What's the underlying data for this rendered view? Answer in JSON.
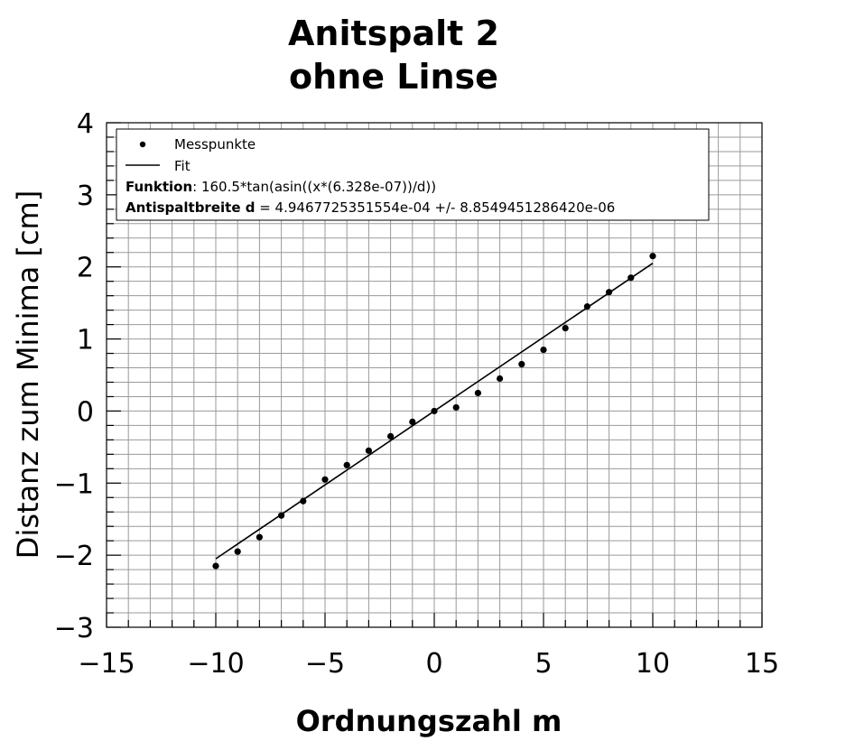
{
  "chart_data": {
    "type": "scatter",
    "title": [
      "Anitspalt 2",
      "ohne Linse"
    ],
    "xlabel": "Ordnungszahl m",
    "ylabel": "Distanz zum Minima [cm]",
    "xlim": [
      -15,
      15
    ],
    "ylim": [
      -3,
      4
    ],
    "xticks": [
      -15,
      -10,
      -5,
      0,
      5,
      10,
      15
    ],
    "yticks": [
      -3,
      -2,
      -1,
      0,
      1,
      2,
      3,
      4
    ],
    "xtick_labels": [
      "−15",
      "−10",
      "−5",
      "0",
      "5",
      "10",
      "15"
    ],
    "ytick_labels": [
      "−3",
      "−2",
      "−1",
      "0",
      "1",
      "2",
      "3",
      "4"
    ],
    "grid": true,
    "legend_position": "top-left",
    "series": [
      {
        "name": "Messpunkte",
        "kind": "points",
        "color": "#000000",
        "x": [
          -10,
          -9,
          -8,
          -7,
          -6,
          -5,
          -4,
          -3,
          -2,
          -1,
          0,
          1,
          2,
          3,
          4,
          5,
          6,
          7,
          8,
          9,
          10
        ],
        "y": [
          -2.15,
          -1.95,
          -1.75,
          -1.45,
          -1.25,
          -0.95,
          -0.75,
          -0.55,
          -0.35,
          -0.15,
          0.0,
          0.05,
          0.25,
          0.45,
          0.65,
          0.85,
          1.15,
          1.45,
          1.65,
          1.85,
          2.15
        ]
      },
      {
        "name": "Fit",
        "kind": "line",
        "color": "#000000",
        "x": [
          -10,
          10
        ],
        "y": [
          -2.05,
          2.05
        ]
      }
    ],
    "legend_lines": [
      {
        "bold": "Funktion",
        "text": ": 160.5*tan(asin((x*(6.328e-07))/d))"
      },
      {
        "bold": "Antispaltbreite d",
        "text": " = 4.9467725351554e-04 +/- 8.8549451286420e-06"
      }
    ]
  }
}
